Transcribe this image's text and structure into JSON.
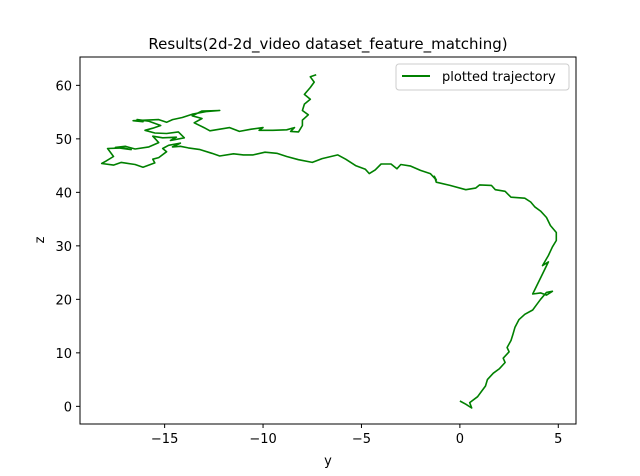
{
  "chart_data": {
    "type": "line",
    "title": "Results(2d-2d_video dataset_feature_matching)",
    "xlabel": "y",
    "ylabel": "z",
    "xlim": [
      -19.3,
      5.9
    ],
    "ylim": [
      -3.3,
      65.3
    ],
    "xticks": [
      -15,
      -10,
      -5,
      0,
      5
    ],
    "yticks": [
      0,
      10,
      20,
      30,
      40,
      50,
      60
    ],
    "xtick_labels": [
      "−15",
      "−10",
      "−5",
      "0",
      "5"
    ],
    "ytick_labels": [
      "0",
      "10",
      "20",
      "30",
      "40",
      "50",
      "60"
    ],
    "grid": false,
    "legend_position": "top-right",
    "series": [
      {
        "name": "plotted trajectory",
        "color": "#008000",
        "points": [
          [
            0.0,
            1.0
          ],
          [
            0.3,
            0.4
          ],
          [
            0.6,
            -0.3
          ],
          [
            0.5,
            0.7
          ],
          [
            0.9,
            1.8
          ],
          [
            1.1,
            2.8
          ],
          [
            1.3,
            3.8
          ],
          [
            1.4,
            5.0
          ],
          [
            1.7,
            6.2
          ],
          [
            2.0,
            7.0
          ],
          [
            2.3,
            8.2
          ],
          [
            2.2,
            9.0
          ],
          [
            2.5,
            10.2
          ],
          [
            2.4,
            11.0
          ],
          [
            2.6,
            12.3
          ],
          [
            2.7,
            13.5
          ],
          [
            2.8,
            14.8
          ],
          [
            3.0,
            16.2
          ],
          [
            3.3,
            17.2
          ],
          [
            3.7,
            18.0
          ],
          [
            3.9,
            19.0
          ],
          [
            4.1,
            20.0
          ],
          [
            4.4,
            21.3
          ],
          [
            4.7,
            21.5
          ],
          [
            4.4,
            20.8
          ],
          [
            4.1,
            21.2
          ],
          [
            3.7,
            21.0
          ],
          [
            3.9,
            22.5
          ],
          [
            4.1,
            24.0
          ],
          [
            4.3,
            25.5
          ],
          [
            4.5,
            27.0
          ],
          [
            4.2,
            26.3
          ],
          [
            4.5,
            28.2
          ],
          [
            4.7,
            29.8
          ],
          [
            4.9,
            31.0
          ],
          [
            4.9,
            32.5
          ],
          [
            4.6,
            33.8
          ],
          [
            4.4,
            35.3
          ],
          [
            4.1,
            36.5
          ],
          [
            3.8,
            37.3
          ],
          [
            3.6,
            38.2
          ],
          [
            3.3,
            38.9
          ],
          [
            2.6,
            39.1
          ],
          [
            2.3,
            40.2
          ],
          [
            1.8,
            40.5
          ],
          [
            1.6,
            41.3
          ],
          [
            1.0,
            41.4
          ],
          [
            0.8,
            40.8
          ],
          [
            0.3,
            40.5
          ],
          [
            -0.5,
            41.3
          ],
          [
            -1.2,
            41.9
          ],
          [
            -1.3,
            43.0
          ],
          [
            -1.2,
            42.3
          ],
          [
            -1.5,
            43.5
          ],
          [
            -2.0,
            44.1
          ],
          [
            -2.5,
            44.9
          ],
          [
            -3.0,
            45.2
          ],
          [
            -3.2,
            44.4
          ],
          [
            -3.5,
            45.3
          ],
          [
            -4.0,
            45.3
          ],
          [
            -4.3,
            44.2
          ],
          [
            -4.6,
            43.5
          ],
          [
            -4.8,
            44.3
          ],
          [
            -5.3,
            45.0
          ],
          [
            -5.8,
            46.2
          ],
          [
            -6.2,
            47.0
          ],
          [
            -7.0,
            46.3
          ],
          [
            -7.5,
            45.6
          ],
          [
            -8.2,
            46.1
          ],
          [
            -8.8,
            46.7
          ],
          [
            -9.3,
            47.3
          ],
          [
            -9.9,
            47.5
          ],
          [
            -10.5,
            47.0
          ],
          [
            -11.0,
            47.0
          ],
          [
            -11.5,
            47.2
          ],
          [
            -12.2,
            46.8
          ],
          [
            -12.6,
            47.3
          ],
          [
            -13.2,
            48.0
          ],
          [
            -13.8,
            48.3
          ],
          [
            -14.2,
            48.6
          ],
          [
            -14.6,
            48.5
          ],
          [
            -14.2,
            49.2
          ],
          [
            -14.8,
            48.8
          ],
          [
            -15.1,
            48.2
          ],
          [
            -14.9,
            47.6
          ],
          [
            -15.3,
            46.5
          ],
          [
            -15.6,
            46.2
          ],
          [
            -15.5,
            45.5
          ],
          [
            -16.1,
            44.7
          ],
          [
            -16.5,
            45.2
          ],
          [
            -17.2,
            45.6
          ],
          [
            -17.6,
            45.1
          ],
          [
            -18.2,
            45.4
          ],
          [
            -18.0,
            45.8
          ],
          [
            -17.6,
            46.7
          ],
          [
            -17.9,
            48.2
          ],
          [
            -17.1,
            48.3
          ],
          [
            -16.7,
            48.0
          ],
          [
            -17.5,
            48.4
          ],
          [
            -17.0,
            48.6
          ],
          [
            -16.5,
            48.1
          ],
          [
            -15.8,
            48.5
          ],
          [
            -15.3,
            49.3
          ],
          [
            -15.6,
            50.5
          ],
          [
            -15.1,
            50.2
          ],
          [
            -14.4,
            50.3
          ],
          [
            -14.7,
            49.7
          ],
          [
            -14.0,
            50.2
          ],
          [
            -14.3,
            51.3
          ],
          [
            -14.9,
            51.0
          ],
          [
            -15.5,
            51.1
          ],
          [
            -16.0,
            51.6
          ],
          [
            -15.6,
            52.0
          ],
          [
            -15.2,
            52.5
          ],
          [
            -15.8,
            53.3
          ],
          [
            -16.4,
            53.6
          ],
          [
            -16.1,
            53.2
          ],
          [
            -16.6,
            53.4
          ],
          [
            -15.3,
            53.6
          ],
          [
            -14.9,
            53.1
          ],
          [
            -14.6,
            53.6
          ],
          [
            -14.1,
            54.0
          ],
          [
            -13.6,
            54.6
          ],
          [
            -12.9,
            55.1
          ],
          [
            -12.2,
            55.3
          ],
          [
            -13.1,
            55.2
          ],
          [
            -13.6,
            54.3
          ],
          [
            -13.1,
            53.8
          ],
          [
            -13.5,
            53.0
          ],
          [
            -13.0,
            52.1
          ],
          [
            -12.7,
            51.5
          ],
          [
            -12.2,
            51.8
          ],
          [
            -11.7,
            52.1
          ],
          [
            -11.2,
            51.4
          ],
          [
            -10.6,
            51.8
          ],
          [
            -10.0,
            52.1
          ],
          [
            -10.2,
            51.6
          ],
          [
            -9.5,
            51.6
          ],
          [
            -8.8,
            51.7
          ],
          [
            -8.4,
            52.1
          ],
          [
            -8.6,
            51.4
          ],
          [
            -8.2,
            51.3
          ],
          [
            -8.0,
            52.5
          ],
          [
            -8.0,
            53.5
          ],
          [
            -7.7,
            54.5
          ],
          [
            -8.0,
            55.3
          ],
          [
            -7.9,
            56.5
          ],
          [
            -7.6,
            57.4
          ],
          [
            -7.9,
            58.3
          ],
          [
            -7.6,
            59.6
          ],
          [
            -7.4,
            60.6
          ],
          [
            -7.6,
            61.6
          ],
          [
            -7.3,
            62.0
          ]
        ]
      }
    ]
  }
}
